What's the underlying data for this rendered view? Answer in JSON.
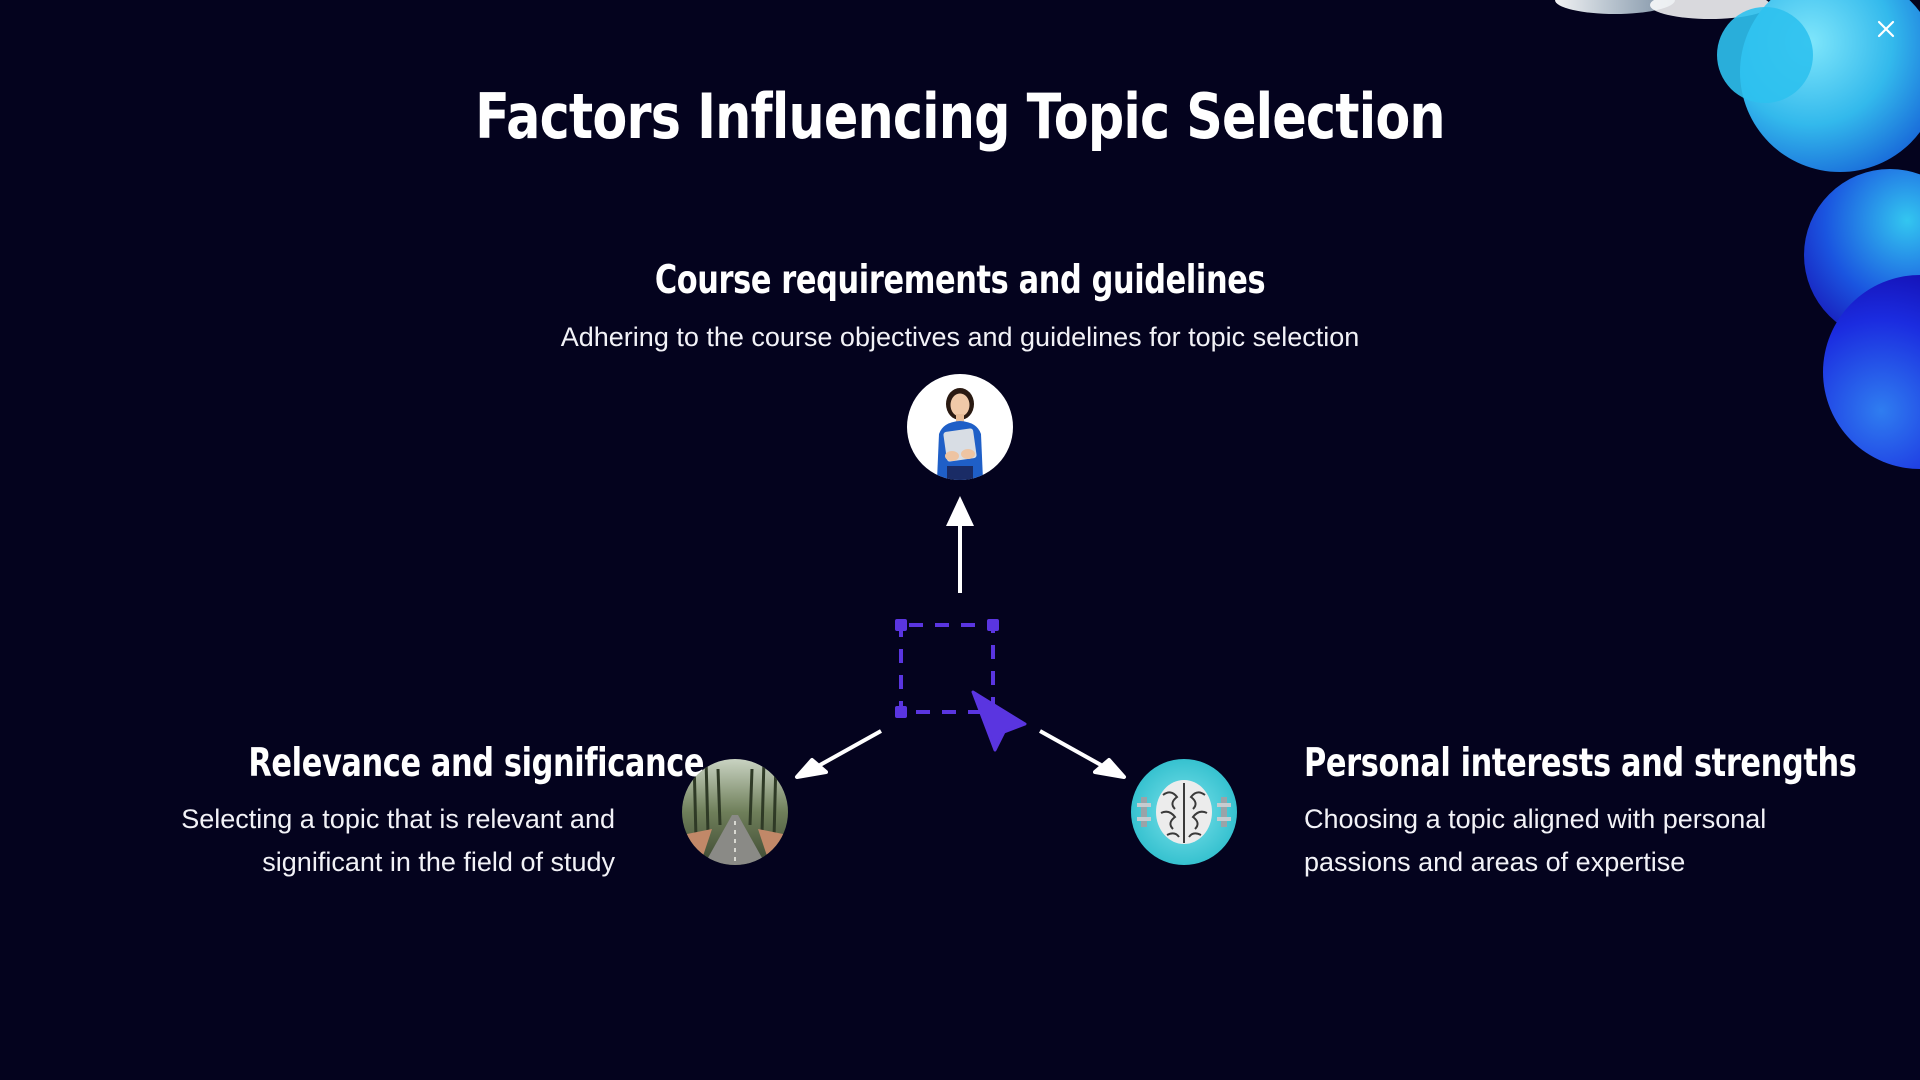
{
  "slide": {
    "title": "Factors Influencing Topic Selection"
  },
  "factors": {
    "top": {
      "heading": "Course requirements and guidelines",
      "description": "Adhering to the course objectives and guidelines for topic selection",
      "image": "woman-holding-laptop-photo"
    },
    "left": {
      "heading": "Relevance and significance",
      "description": "Selecting a topic that is relevant and significant in the field of study",
      "image": "tree-lined-road-photo"
    },
    "right": {
      "heading": "Personal interests and strengths",
      "description": "Choosing a topic aligned with personal passions and areas of expertise",
      "image": "brain-with-dumbbells-photo"
    }
  },
  "controls": {
    "close_icon": "close-icon"
  },
  "colors": {
    "background": "#04031e",
    "accent": "#5a35e0",
    "text": "#ffffff",
    "blob_light": "#35c8ec",
    "blob_dark": "#1a22d8"
  }
}
